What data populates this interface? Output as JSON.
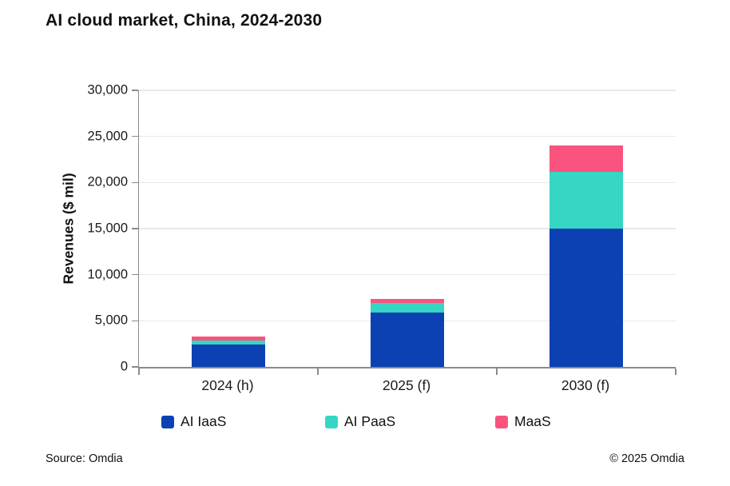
{
  "title": "AI cloud market, China, 2024-2030",
  "footer": {
    "source": "Source: Omdia",
    "copyright": "© 2025 Omdia"
  },
  "colors": {
    "background": "#ffffff",
    "axis": "#8a8a8a",
    "gridline": "#e8e8e8",
    "text": "#1a1a1a",
    "iaas_blue": "#0B41B3",
    "paas_teal": "#35D6C4",
    "maas_pink": "#F9537E"
  },
  "chart_data": {
    "type": "bar",
    "stacked": true,
    "title": "AI cloud market, China, 2024-2030",
    "categories": [
      "2024 (h)",
      "2025 (f)",
      "2030 (f)"
    ],
    "series": [
      {
        "name": "AI IaaS",
        "color": "#0B41B3",
        "values": [
          2400,
          5900,
          15000
        ]
      },
      {
        "name": "AI PaaS",
        "color": "#35D6C4",
        "values": [
          500,
          1000,
          6200
        ]
      },
      {
        "name": "MaaS",
        "color": "#F9537E",
        "values": [
          400,
          500,
          2800
        ]
      }
    ],
    "totals": [
      3300,
      7400,
      24000
    ],
    "xlabel": "",
    "ylabel": "Revenues ($ mil)",
    "ylim": [
      0,
      30000
    ],
    "ytick_interval": 5000,
    "ytick_values": [
      0,
      5000,
      10000,
      15000,
      20000,
      25000,
      30000
    ],
    "ytick_labels": [
      "0",
      "5,000",
      "10,000",
      "15,000",
      "20,000",
      "25,000",
      "30,000"
    ],
    "grid": "horizontal",
    "legend_position": "bottom"
  }
}
